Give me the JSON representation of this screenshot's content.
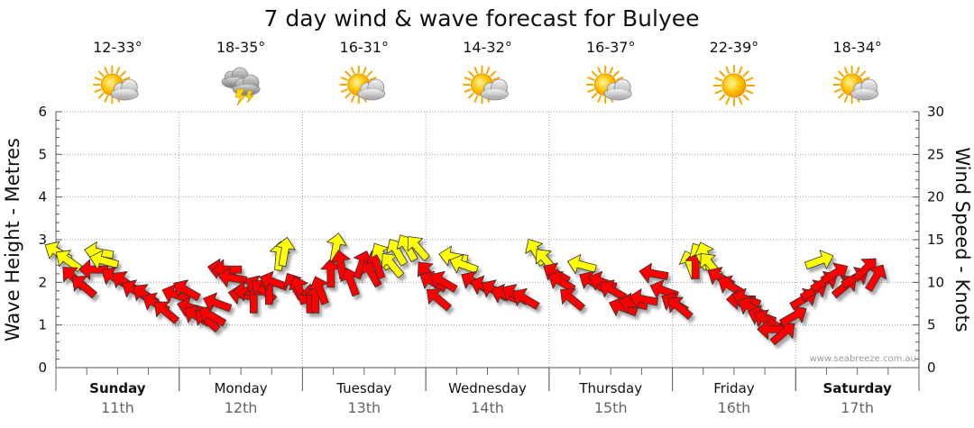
{
  "chart_data": {
    "type": "line",
    "title": "7 day wind & wave forecast for Bulyee",
    "ylabel_left": "Wave Height - Metres",
    "ylabel_right": "Wind Speed - Knots",
    "ylim_left": [
      0,
      6
    ],
    "ylim_right": [
      0,
      30
    ],
    "yticks_left": [
      "0",
      "1",
      "2",
      "3",
      "4",
      "5",
      "6"
    ],
    "yticks_right": [
      "0",
      "5",
      "10",
      "15",
      "20",
      "25",
      "30"
    ],
    "grid": true,
    "days": [
      {
        "name": "Sunday",
        "date": "11th",
        "temp": "12-33°",
        "icon": "partly-cloudy-icon",
        "bold": true
      },
      {
        "name": "Monday",
        "date": "12th",
        "temp": "18-35°",
        "icon": "thunderstorm-icon",
        "bold": false
      },
      {
        "name": "Tuesday",
        "date": "13th",
        "temp": "16-31°",
        "icon": "partly-cloudy-icon",
        "bold": false
      },
      {
        "name": "Wednesday",
        "date": "14th",
        "temp": "14-32°",
        "icon": "partly-cloudy-icon",
        "bold": false
      },
      {
        "name": "Thursday",
        "date": "15th",
        "temp": "16-37°",
        "icon": "partly-cloudy-icon",
        "bold": false
      },
      {
        "name": "Friday",
        "date": "16th",
        "temp": "22-39°",
        "icon": "sunny-icon",
        "bold": false
      },
      {
        "name": "Saturday",
        "date": "17th",
        "temp": "18-34°",
        "icon": "partly-cloudy-icon",
        "bold": true
      }
    ],
    "wind_series": {
      "name": "Wind Speed - Knots",
      "arrow_colors": {
        "light": "#ffff00",
        "strong": "#ff0000"
      },
      "points": [
        {
          "day": 0,
          "hour": 0,
          "speed": 13.5,
          "dir": 300,
          "color": "yellow"
        },
        {
          "day": 0,
          "hour": 2,
          "speed": 12.5,
          "dir": 305,
          "color": "yellow"
        },
        {
          "day": 0,
          "hour": 3,
          "speed": 10.5,
          "dir": 315,
          "color": "red"
        },
        {
          "day": 0,
          "hour": 5,
          "speed": 9.5,
          "dir": 310,
          "color": "red"
        },
        {
          "day": 0,
          "hour": 7,
          "speed": 11.5,
          "dir": 270,
          "color": "red"
        },
        {
          "day": 0,
          "hour": 8,
          "speed": 13.5,
          "dir": 280,
          "color": "yellow"
        },
        {
          "day": 0,
          "hour": 9,
          "speed": 12.5,
          "dir": 285,
          "color": "yellow"
        },
        {
          "day": 0,
          "hour": 11,
          "speed": 10.5,
          "dir": 300,
          "color": "red"
        },
        {
          "day": 0,
          "hour": 13,
          "speed": 10,
          "dir": 305,
          "color": "red"
        },
        {
          "day": 0,
          "hour": 15,
          "speed": 9,
          "dir": 300,
          "color": "red"
        },
        {
          "day": 0,
          "hour": 17,
          "speed": 8.5,
          "dir": 305,
          "color": "red"
        },
        {
          "day": 0,
          "hour": 19,
          "speed": 7.5,
          "dir": 300,
          "color": "red"
        },
        {
          "day": 0,
          "hour": 21,
          "speed": 6.5,
          "dir": 310,
          "color": "red"
        },
        {
          "day": 0,
          "hour": 23,
          "speed": 8.5,
          "dir": 290,
          "color": "red"
        },
        {
          "day": 1,
          "hour": 1,
          "speed": 9,
          "dir": 300,
          "color": "red"
        },
        {
          "day": 1,
          "hour": 2,
          "speed": 7,
          "dir": 285,
          "color": "red"
        },
        {
          "day": 1,
          "hour": 3,
          "speed": 6,
          "dir": 300,
          "color": "red"
        },
        {
          "day": 1,
          "hour": 5,
          "speed": 5.5,
          "dir": 310,
          "color": "red"
        },
        {
          "day": 1,
          "hour": 6,
          "speed": 6,
          "dir": 300,
          "color": "red"
        },
        {
          "day": 1,
          "hour": 7,
          "speed": 7.5,
          "dir": 290,
          "color": "red"
        },
        {
          "day": 1,
          "hour": 8,
          "speed": 11.5,
          "dir": 280,
          "color": "red"
        },
        {
          "day": 1,
          "hour": 9,
          "speed": 11.5,
          "dir": 270,
          "color": "red"
        },
        {
          "day": 1,
          "hour": 10,
          "speed": 10.5,
          "dir": 280,
          "color": "red"
        },
        {
          "day": 1,
          "hour": 12,
          "speed": 8.5,
          "dir": 280,
          "color": "red"
        },
        {
          "day": 1,
          "hour": 13,
          "speed": 9,
          "dir": 270,
          "color": "red"
        },
        {
          "day": 1,
          "hour": 14,
          "speed": 8,
          "dir": 0,
          "color": "red"
        },
        {
          "day": 1,
          "hour": 15,
          "speed": 9.5,
          "dir": 300,
          "color": "red"
        },
        {
          "day": 1,
          "hour": 16,
          "speed": 9,
          "dir": 310,
          "color": "red"
        },
        {
          "day": 1,
          "hour": 17,
          "speed": 9,
          "dir": 0,
          "color": "red"
        },
        {
          "day": 1,
          "hour": 18,
          "speed": 10,
          "dir": 290,
          "color": "red"
        },
        {
          "day": 1,
          "hour": 19,
          "speed": 13,
          "dir": 5,
          "color": "yellow"
        },
        {
          "day": 1,
          "hour": 20,
          "speed": 13.5,
          "dir": 10,
          "color": "yellow"
        },
        {
          "day": 1,
          "hour": 22,
          "speed": 9.5,
          "dir": 330,
          "color": "red"
        },
        {
          "day": 1,
          "hour": 23,
          "speed": 9,
          "dir": 340,
          "color": "red"
        },
        {
          "day": 2,
          "hour": 1,
          "speed": 8,
          "dir": 0,
          "color": "red"
        },
        {
          "day": 2,
          "hour": 2,
          "speed": 8,
          "dir": 0,
          "color": "red"
        },
        {
          "day": 2,
          "hour": 3,
          "speed": 9,
          "dir": 340,
          "color": "red"
        },
        {
          "day": 2,
          "hour": 5,
          "speed": 11,
          "dir": 0,
          "color": "red"
        },
        {
          "day": 2,
          "hour": 6,
          "speed": 14,
          "dir": 10,
          "color": "yellow"
        },
        {
          "day": 2,
          "hour": 7,
          "speed": 12,
          "dir": 350,
          "color": "red"
        },
        {
          "day": 2,
          "hour": 9,
          "speed": 10,
          "dir": 340,
          "color": "red"
        },
        {
          "day": 2,
          "hour": 11,
          "speed": 12,
          "dir": 20,
          "color": "red"
        },
        {
          "day": 2,
          "hour": 13,
          "speed": 11,
          "dir": 330,
          "color": "red"
        },
        {
          "day": 2,
          "hour": 14,
          "speed": 12,
          "dir": 340,
          "color": "red"
        },
        {
          "day": 2,
          "hour": 15,
          "speed": 13,
          "dir": 330,
          "color": "yellow"
        },
        {
          "day": 2,
          "hour": 17,
          "speed": 12,
          "dir": 320,
          "color": "yellow"
        },
        {
          "day": 2,
          "hour": 18,
          "speed": 13.5,
          "dir": 330,
          "color": "yellow"
        },
        {
          "day": 2,
          "hour": 20,
          "speed": 14,
          "dir": 330,
          "color": "yellow"
        },
        {
          "day": 2,
          "hour": 22,
          "speed": 14,
          "dir": 320,
          "color": "yellow"
        },
        {
          "day": 3,
          "hour": 0,
          "speed": 11,
          "dir": 320,
          "color": "red"
        },
        {
          "day": 3,
          "hour": 1,
          "speed": 10,
          "dir": 300,
          "color": "red"
        },
        {
          "day": 3,
          "hour": 2,
          "speed": 8,
          "dir": 310,
          "color": "red"
        },
        {
          "day": 3,
          "hour": 3,
          "speed": 10,
          "dir": 300,
          "color": "red"
        },
        {
          "day": 3,
          "hour": 5,
          "speed": 13,
          "dir": 280,
          "color": "yellow"
        },
        {
          "day": 3,
          "hour": 7,
          "speed": 12,
          "dir": 290,
          "color": "yellow"
        },
        {
          "day": 3,
          "hour": 9,
          "speed": 10,
          "dir": 300,
          "color": "red"
        },
        {
          "day": 3,
          "hour": 11,
          "speed": 9.5,
          "dir": 290,
          "color": "red"
        },
        {
          "day": 3,
          "hour": 13,
          "speed": 9,
          "dir": 300,
          "color": "red"
        },
        {
          "day": 3,
          "hour": 15,
          "speed": 8.5,
          "dir": 290,
          "color": "red"
        },
        {
          "day": 3,
          "hour": 17,
          "speed": 8.5,
          "dir": 300,
          "color": "red"
        },
        {
          "day": 3,
          "hour": 19,
          "speed": 8,
          "dir": 300,
          "color": "red"
        },
        {
          "day": 3,
          "hour": 21,
          "speed": 13.5,
          "dir": 330,
          "color": "yellow"
        },
        {
          "day": 3,
          "hour": 23,
          "speed": 12.5,
          "dir": 320,
          "color": "yellow"
        },
        {
          "day": 4,
          "hour": 1,
          "speed": 11,
          "dir": 300,
          "color": "red"
        },
        {
          "day": 4,
          "hour": 2,
          "speed": 10,
          "dir": 300,
          "color": "red"
        },
        {
          "day": 4,
          "hour": 4,
          "speed": 8,
          "dir": 310,
          "color": "red"
        },
        {
          "day": 4,
          "hour": 6,
          "speed": 12,
          "dir": 285,
          "color": "yellow"
        },
        {
          "day": 4,
          "hour": 8,
          "speed": 10,
          "dir": 300,
          "color": "red"
        },
        {
          "day": 4,
          "hour": 10,
          "speed": 10,
          "dir": 290,
          "color": "red"
        },
        {
          "day": 4,
          "hour": 12,
          "speed": 9,
          "dir": 300,
          "color": "red"
        },
        {
          "day": 4,
          "hour": 14,
          "speed": 7,
          "dir": 290,
          "color": "red"
        },
        {
          "day": 4,
          "hour": 16,
          "speed": 7.5,
          "dir": 280,
          "color": "red"
        },
        {
          "day": 4,
          "hour": 18,
          "speed": 8,
          "dir": 280,
          "color": "red"
        },
        {
          "day": 4,
          "hour": 20,
          "speed": 11,
          "dir": 280,
          "color": "red"
        },
        {
          "day": 4,
          "hour": 22,
          "speed": 9,
          "dir": 290,
          "color": "red"
        },
        {
          "day": 5,
          "hour": 0,
          "speed": 7.5,
          "dir": 300,
          "color": "red"
        },
        {
          "day": 5,
          "hour": 1,
          "speed": 7,
          "dir": 310,
          "color": "red"
        },
        {
          "day": 5,
          "hour": 3,
          "speed": 12,
          "dir": 340,
          "color": "yellow"
        },
        {
          "day": 5,
          "hour": 4,
          "speed": 12,
          "dir": 0,
          "color": "red"
        },
        {
          "day": 5,
          "hour": 5,
          "speed": 13,
          "dir": 330,
          "color": "yellow"
        },
        {
          "day": 5,
          "hour": 6,
          "speed": 13,
          "dir": 340,
          "color": "yellow"
        },
        {
          "day": 5,
          "hour": 7,
          "speed": 12,
          "dir": 320,
          "color": "yellow"
        },
        {
          "day": 5,
          "hour": 9,
          "speed": 10.5,
          "dir": 300,
          "color": "red"
        },
        {
          "day": 5,
          "hour": 11,
          "speed": 9.5,
          "dir": 300,
          "color": "red"
        },
        {
          "day": 5,
          "hour": 13,
          "speed": 8,
          "dir": 270,
          "color": "red"
        },
        {
          "day": 5,
          "hour": 14,
          "speed": 8,
          "dir": 290,
          "color": "red"
        },
        {
          "day": 5,
          "hour": 15,
          "speed": 7,
          "dir": 300,
          "color": "red"
        },
        {
          "day": 5,
          "hour": 17,
          "speed": 6,
          "dir": 290,
          "color": "red"
        },
        {
          "day": 5,
          "hour": 18,
          "speed": 5.5,
          "dir": 300,
          "color": "red"
        },
        {
          "day": 5,
          "hour": 19,
          "speed": 4.5,
          "dir": 270,
          "color": "red"
        },
        {
          "day": 5,
          "hour": 21,
          "speed": 4,
          "dir": 50,
          "color": "red"
        },
        {
          "day": 5,
          "hour": 23,
          "speed": 6,
          "dir": 60,
          "color": "red"
        },
        {
          "day": 6,
          "hour": 1,
          "speed": 8,
          "dir": 60,
          "color": "red"
        },
        {
          "day": 6,
          "hour": 3,
          "speed": 9,
          "dir": 60,
          "color": "red"
        },
        {
          "day": 6,
          "hour": 4,
          "speed": 12.5,
          "dir": 70,
          "color": "yellow"
        },
        {
          "day": 6,
          "hour": 5,
          "speed": 10,
          "dir": 60,
          "color": "red"
        },
        {
          "day": 6,
          "hour": 7,
          "speed": 11,
          "dir": 60,
          "color": "red"
        },
        {
          "day": 6,
          "hour": 9,
          "speed": 9.5,
          "dir": 50,
          "color": "red"
        },
        {
          "day": 6,
          "hour": 11,
          "speed": 10.5,
          "dir": 60,
          "color": "red"
        },
        {
          "day": 6,
          "hour": 13,
          "speed": 11.5,
          "dir": 45,
          "color": "red"
        },
        {
          "day": 6,
          "hour": 15,
          "speed": 10.5,
          "dir": 30,
          "color": "red"
        }
      ]
    }
  },
  "watermark": "www.seabreeze.com.au"
}
